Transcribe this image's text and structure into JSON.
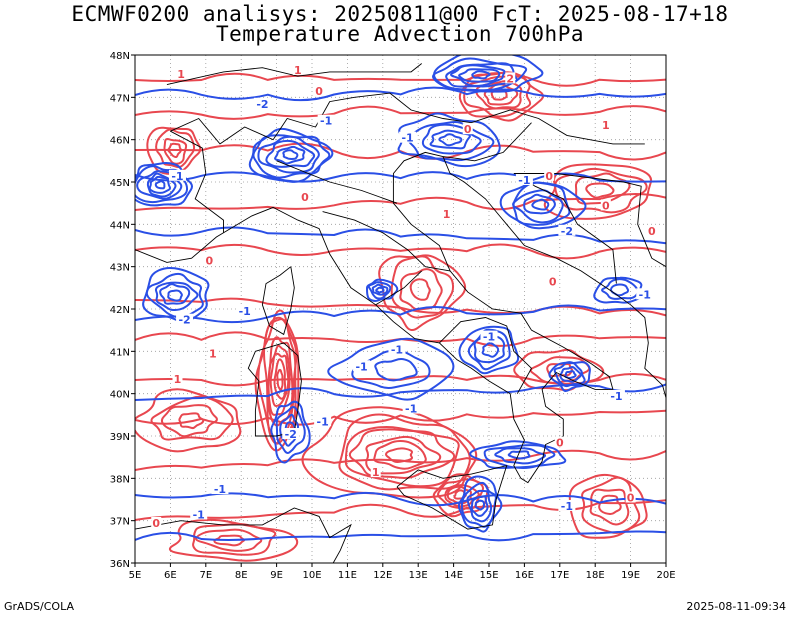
{
  "header": {
    "title_line1": "ECMWF0200 analisys: 20250811@00 FcT: 2025-08-17+18",
    "title_line2": "Temperature Advection 700hPa"
  },
  "footer": {
    "credit": "GrADS/COLA",
    "timestamp": "2025-08-11-09:34"
  },
  "colors": {
    "positive": "#e8474f",
    "negative": "#2a4fe6",
    "coast": "#000000",
    "grid": "#9a9a9a"
  },
  "map": {
    "lon_range": [
      5,
      20
    ],
    "lat_range": [
      36,
      48
    ],
    "lon_ticks": [
      "5E",
      "6E",
      "7E",
      "8E",
      "9E",
      "10E",
      "11E",
      "12E",
      "13E",
      "14E",
      "15E",
      "16E",
      "17E",
      "18E",
      "19E",
      "20E"
    ],
    "lat_ticks": [
      "36N",
      "37N",
      "38N",
      "39N",
      "40N",
      "41N",
      "42N",
      "43N",
      "44N",
      "45N",
      "46N",
      "47N",
      "48N"
    ],
    "grid": "dotted",
    "contour_labels": [
      {
        "text": "1",
        "lon": 6.3,
        "lat": 47.5,
        "sign": "pos"
      },
      {
        "text": "1",
        "lon": 9.6,
        "lat": 47.6,
        "sign": "pos"
      },
      {
        "text": "0",
        "lon": 10.2,
        "lat": 47.1,
        "sign": "pos"
      },
      {
        "text": "2",
        "lon": 15.6,
        "lat": 47.4,
        "sign": "pos"
      },
      {
        "text": "1",
        "lon": 18.3,
        "lat": 46.3,
        "sign": "pos"
      },
      {
        "text": "-2",
        "lon": 8.6,
        "lat": 46.8,
        "sign": "neg"
      },
      {
        "text": "-1",
        "lon": 10.4,
        "lat": 46.4,
        "sign": "neg"
      },
      {
        "text": "-1",
        "lon": 12.7,
        "lat": 46.0,
        "sign": "neg"
      },
      {
        "text": "-1",
        "lon": 6.2,
        "lat": 45.1,
        "sign": "neg"
      },
      {
        "text": "0",
        "lon": 9.8,
        "lat": 44.6,
        "sign": "pos"
      },
      {
        "text": "-1",
        "lon": 16.0,
        "lat": 45.0,
        "sign": "neg"
      },
      {
        "text": "-2",
        "lon": 17.2,
        "lat": 43.8,
        "sign": "neg"
      },
      {
        "text": "0",
        "lon": 18.3,
        "lat": 44.4,
        "sign": "pos"
      },
      {
        "text": "0",
        "lon": 7.1,
        "lat": 43.1,
        "sign": "pos"
      },
      {
        "text": "-1",
        "lon": 8.1,
        "lat": 41.9,
        "sign": "neg"
      },
      {
        "text": "-2",
        "lon": 6.4,
        "lat": 41.7,
        "sign": "neg"
      },
      {
        "text": "1",
        "lon": 7.2,
        "lat": 40.9,
        "sign": "pos"
      },
      {
        "text": "-1",
        "lon": 11.4,
        "lat": 40.6,
        "sign": "neg"
      },
      {
        "text": "-1",
        "lon": 12.4,
        "lat": 41.0,
        "sign": "neg"
      },
      {
        "text": "-1",
        "lon": 12.8,
        "lat": 39.6,
        "sign": "neg"
      },
      {
        "text": "1",
        "lon": 6.2,
        "lat": 40.3,
        "sign": "pos"
      },
      {
        "text": "-2",
        "lon": 9.4,
        "lat": 39.0,
        "sign": "neg"
      },
      {
        "text": "-1",
        "lon": 10.3,
        "lat": 39.3,
        "sign": "neg"
      },
      {
        "text": "1",
        "lon": 11.8,
        "lat": 38.1,
        "sign": "pos"
      },
      {
        "text": "-1",
        "lon": 7.4,
        "lat": 37.7,
        "sign": "neg"
      },
      {
        "text": "-1",
        "lon": 6.8,
        "lat": 37.1,
        "sign": "neg"
      },
      {
        "text": "0",
        "lon": 5.6,
        "lat": 36.9,
        "sign": "pos"
      },
      {
        "text": "0",
        "lon": 17.0,
        "lat": 38.8,
        "sign": "pos"
      },
      {
        "text": "-1",
        "lon": 17.2,
        "lat": 37.3,
        "sign": "neg"
      },
      {
        "text": "0",
        "lon": 19.0,
        "lat": 37.5,
        "sign": "pos"
      },
      {
        "text": "-1",
        "lon": 15.0,
        "lat": 41.3,
        "sign": "neg"
      },
      {
        "text": "0",
        "lon": 16.8,
        "lat": 42.6,
        "sign": "pos"
      },
      {
        "text": "-1",
        "lon": 19.4,
        "lat": 42.3,
        "sign": "neg"
      },
      {
        "text": "0",
        "lon": 19.6,
        "lat": 43.8,
        "sign": "pos"
      },
      {
        "text": "1",
        "lon": 13.8,
        "lat": 44.2,
        "sign": "pos"
      },
      {
        "text": "0",
        "lon": 14.4,
        "lat": 46.2,
        "sign": "pos"
      },
      {
        "text": "0",
        "lon": 16.7,
        "lat": 45.1,
        "sign": "pos"
      },
      {
        "text": "-1",
        "lon": 18.6,
        "lat": 39.9,
        "sign": "neg"
      }
    ]
  }
}
